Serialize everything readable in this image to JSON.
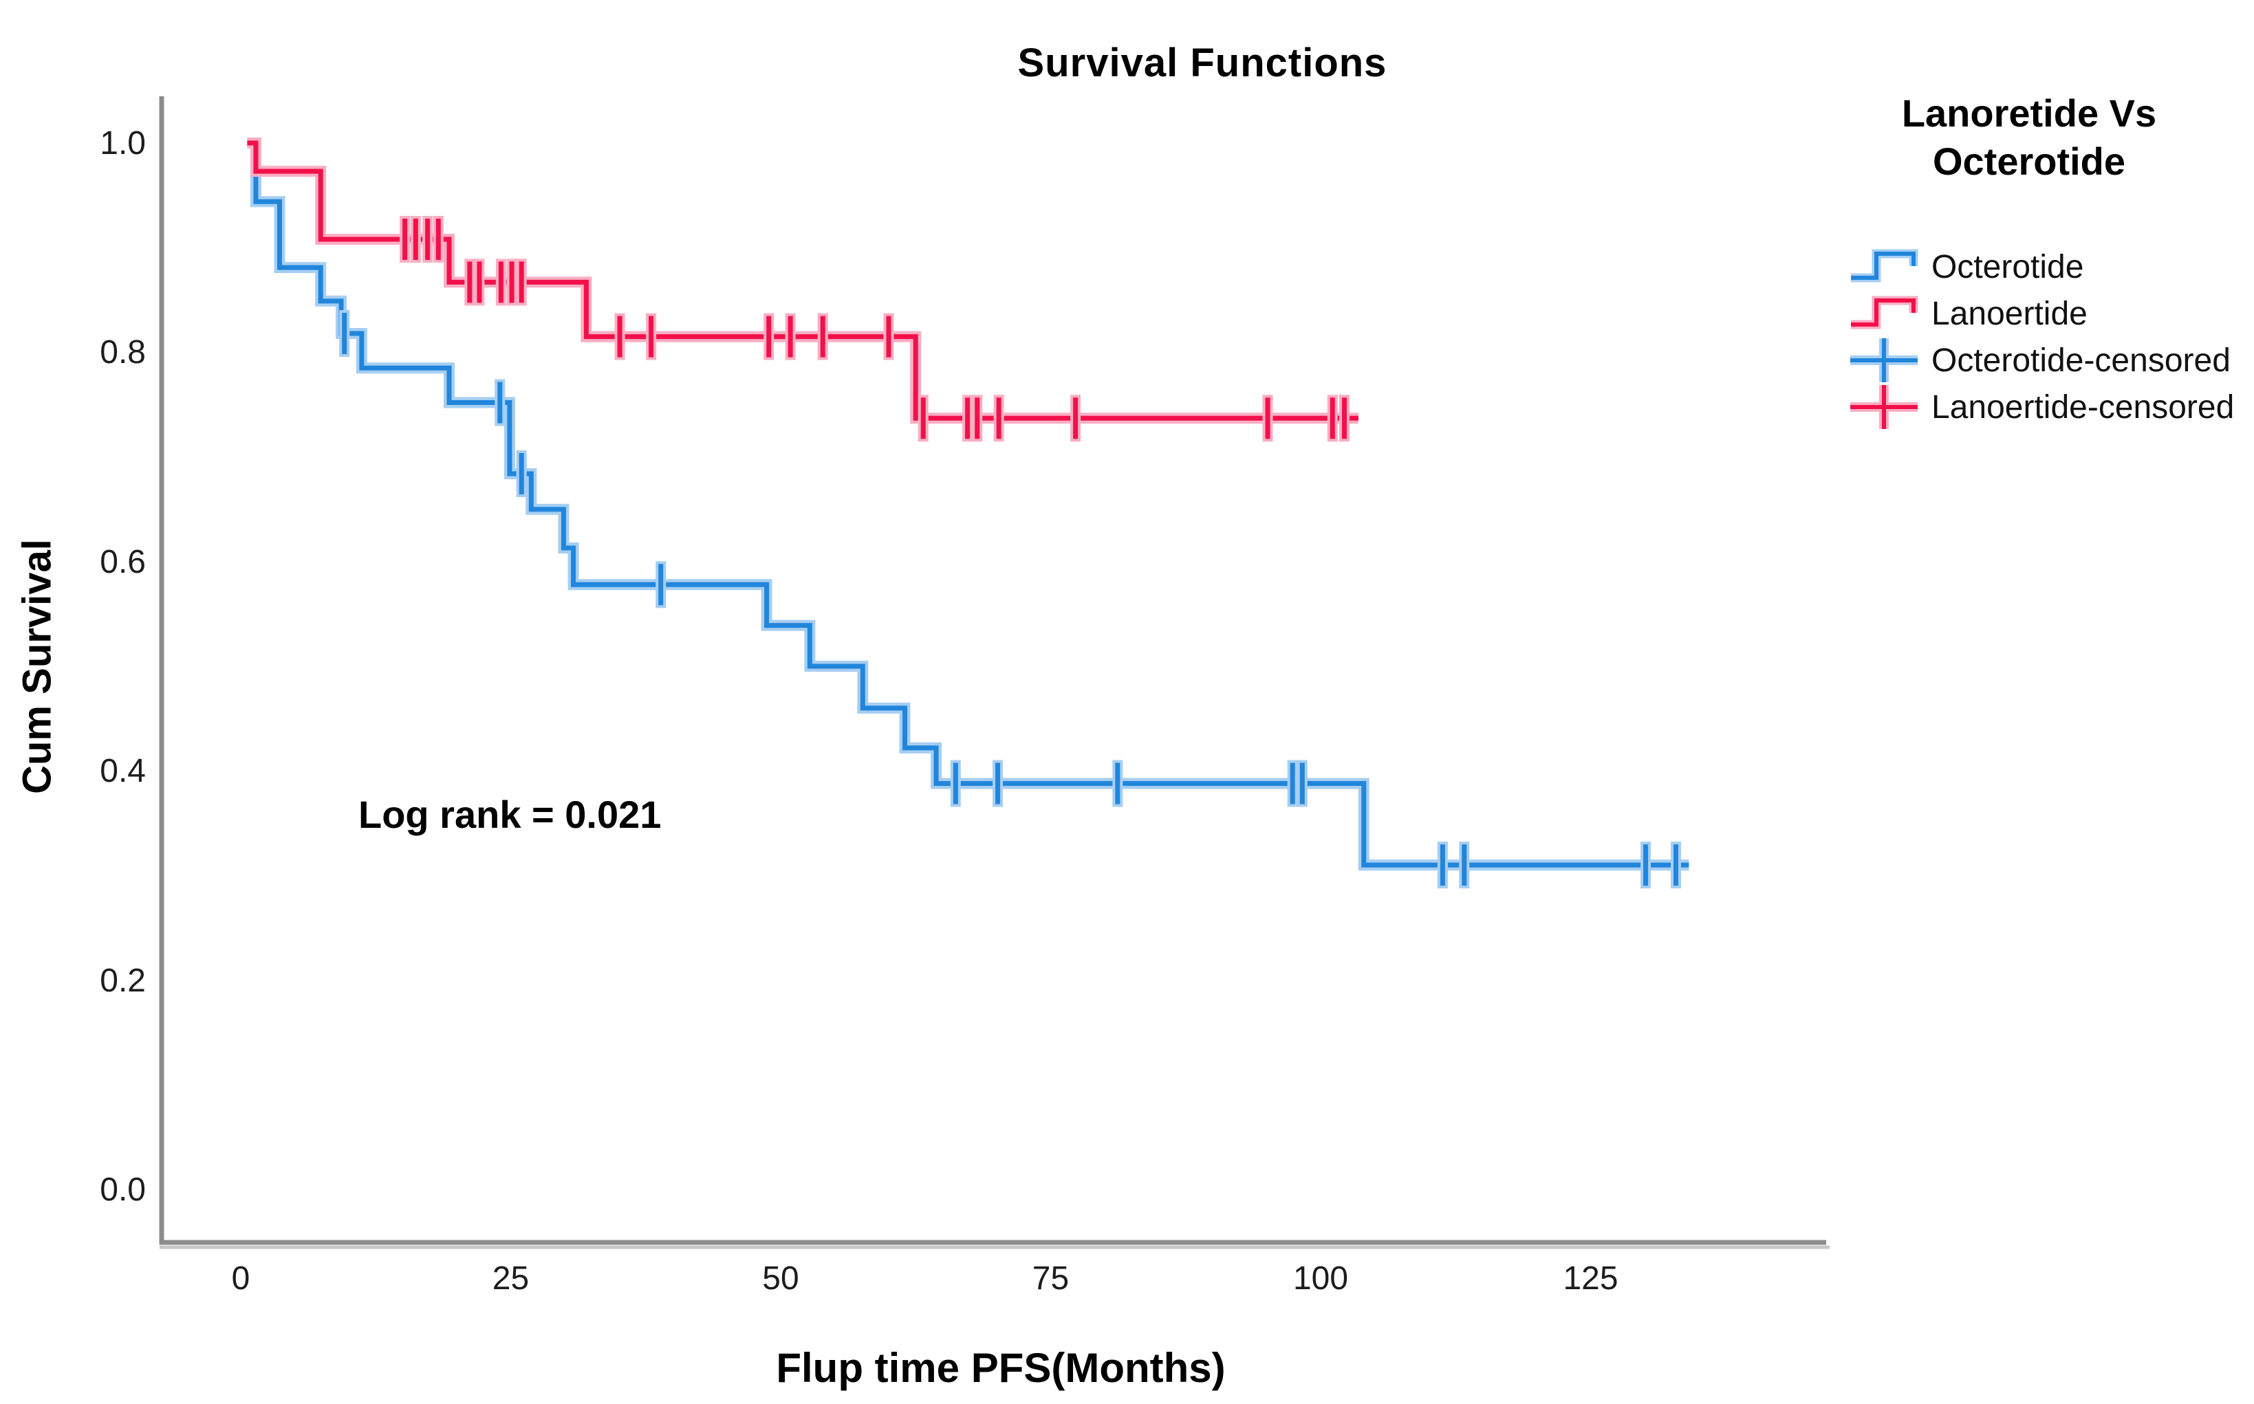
{
  "title": "Survival Functions",
  "y_axis": {
    "label": "Cum Survival"
  },
  "x_axis": {
    "label": "Flup time PFS(Months)"
  },
  "annotation": {
    "text": "Log rank = 0.021"
  },
  "legend": {
    "title_line1": "Lanoretide Vs",
    "title_line2": "Octerotide",
    "items": [
      {
        "label": "Octerotide",
        "glyph": "step-line-icon",
        "color": "#2185DB",
        "halo": "#A6CEF2"
      },
      {
        "label": "Lanoertide",
        "glyph": "step-line-icon",
        "color": "#F2104A",
        "halo": "#F9AEC3"
      },
      {
        "label": "Octerotide-censored",
        "glyph": "censor-plus-icon",
        "color": "#2185DB",
        "halo": "#A6CEF2"
      },
      {
        "label": "Lanoertide-censored",
        "glyph": "censor-plus-icon",
        "color": "#F2104A",
        "halo": "#F9AEC3"
      }
    ]
  },
  "colors": {
    "octerotide": "#2185DB",
    "octerotide_halo": "#A6CEF2",
    "lanoertide": "#F2104A",
    "lanoertide_halo": "#F9AEC3",
    "axis": "#8C8C8C",
    "axis_shadow": "#C8C8C8",
    "background": "#FFFFFF"
  },
  "chart_data": {
    "type": "line",
    "subtype": "kaplan-meier-step",
    "title": "Survival Functions",
    "xlabel": "Flup time PFS(Months)",
    "ylabel": "Cum Survival",
    "xlim": [
      -7.3,
      146.5
    ],
    "ylim": [
      -0.05,
      1.05
    ],
    "x_ticks": [
      0,
      25,
      50,
      75,
      100,
      125
    ],
    "y_ticks": [
      1.0,
      0.8,
      0.6,
      0.4,
      0.2,
      0.0
    ],
    "grid": false,
    "legend_position": "right",
    "annotation": {
      "text": "Log rank = 0.021",
      "x_months": 11,
      "y_survival": 0.37
    },
    "series": [
      {
        "name": "Octerotide",
        "color": "#2185DB",
        "halo": "#A6CEF2",
        "start": 0.6,
        "end": 134.1,
        "steps": [
          [
            1.4,
            0.944
          ],
          [
            3.6,
            0.881
          ],
          [
            7.4,
            0.849
          ],
          [
            9.3,
            0.818
          ],
          [
            11.2,
            0.785
          ],
          [
            19.3,
            0.752
          ],
          [
            24.9,
            0.684
          ],
          [
            26.9,
            0.65
          ],
          [
            29.9,
            0.613
          ],
          [
            30.8,
            0.578
          ],
          [
            48.7,
            0.539
          ],
          [
            52.7,
            0.5
          ],
          [
            57.6,
            0.46
          ],
          [
            61.5,
            0.422
          ],
          [
            64.4,
            0.388
          ],
          [
            104.0,
            0.31
          ]
        ],
        "censored": [
          9.6,
          24.0,
          26.0,
          38.9,
          66.2,
          70.1,
          81.2,
          97.4,
          98.3,
          111.3,
          113.3,
          130.1,
          132.9
        ]
      },
      {
        "name": "Lanoertide",
        "color": "#F2104A",
        "halo": "#F9AEC3",
        "start": 0.6,
        "end": 103.5,
        "steps": [
          [
            1.4,
            0.973
          ],
          [
            7.4,
            0.908
          ],
          [
            19.3,
            0.867
          ],
          [
            32.0,
            0.815
          ],
          [
            62.5,
            0.737
          ]
        ],
        "censored": [
          15.2,
          16.2,
          17.3,
          18.3,
          21.2,
          22.1,
          24.1,
          25.1,
          26.0,
          35.1,
          38.0,
          48.9,
          50.9,
          53.9,
          60.0,
          63.2,
          67.3,
          68.2,
          70.2,
          77.3,
          95.1,
          101.1,
          102.2
        ]
      }
    ]
  }
}
